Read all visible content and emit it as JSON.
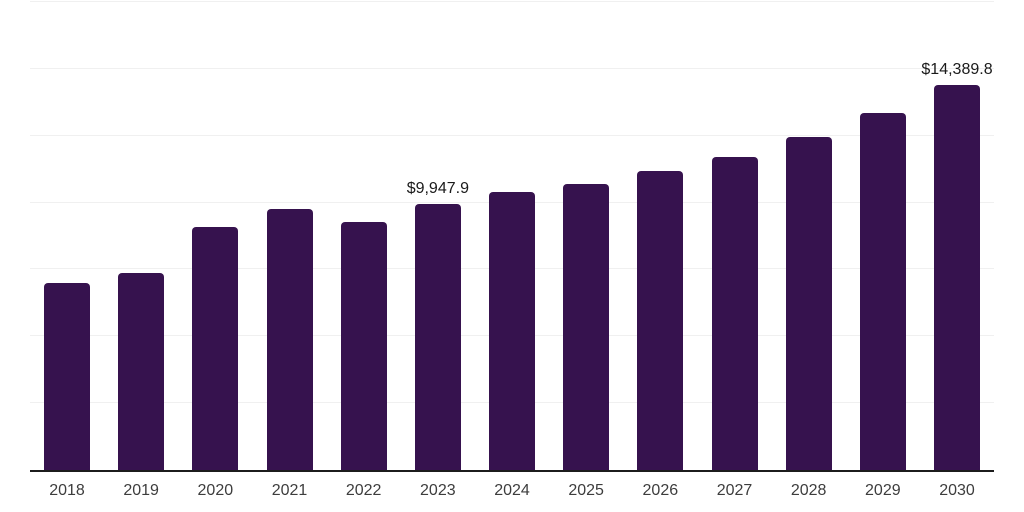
{
  "chart_data": {
    "type": "bar",
    "title": "",
    "xlabel": "",
    "ylabel": "",
    "categories": [
      "2018",
      "2019",
      "2020",
      "2021",
      "2022",
      "2023",
      "2024",
      "2025",
      "2026",
      "2027",
      "2028",
      "2029",
      "2030"
    ],
    "values": [
      6990,
      7360,
      9090,
      9760,
      9290,
      9947.9,
      10380,
      10680,
      11170,
      11720,
      12440,
      13360,
      14389.8
    ],
    "data_labels": [
      "",
      "",
      "",
      "",
      "",
      "$9,947.9",
      "",
      "",
      "",
      "",
      "",
      "",
      "$14,389.8"
    ],
    "ylim": [
      0,
      17500
    ],
    "grid_interval": 2500,
    "grid": true,
    "legend": false,
    "y_tick_labels_visible": false,
    "colors": {
      "bar": "#36124e",
      "grid": "#f0f0f0",
      "axis": "#1c1c1c",
      "data_label": "#1a1a1a",
      "tick_label": "#3d3d3d",
      "background": "#ffffff"
    }
  }
}
